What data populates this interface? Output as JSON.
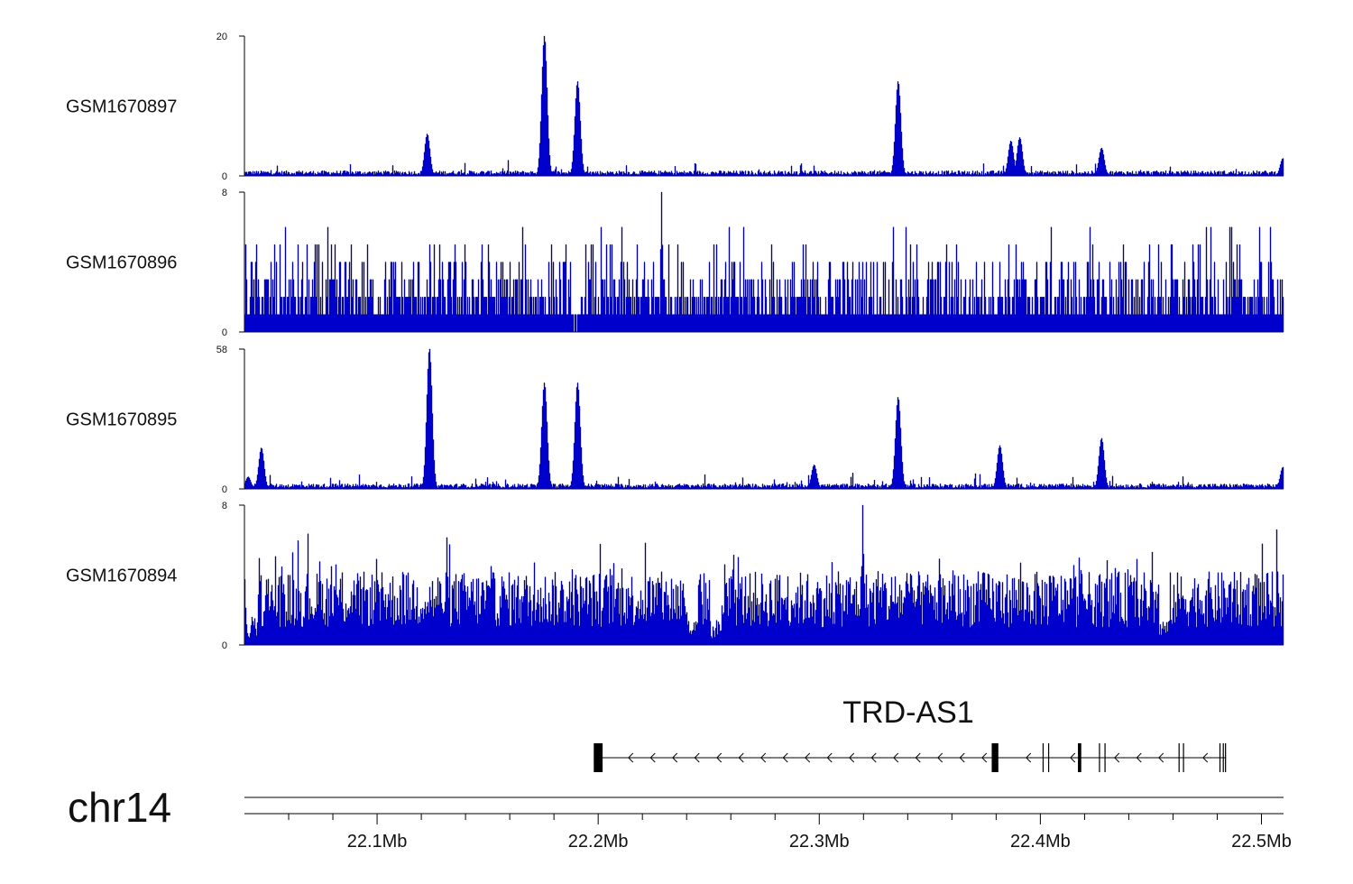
{
  "chart_data": {
    "type": "area",
    "chromosome": "chr14",
    "xlim": [
      22.04,
      22.51
    ],
    "x_unit": "Mb",
    "x_ticks": [
      {
        "value": 22.1,
        "label": "22.1Mb"
      },
      {
        "value": 22.2,
        "label": "22.2Mb"
      },
      {
        "value": 22.3,
        "label": "22.3Mb"
      },
      {
        "value": 22.4,
        "label": "22.4Mb"
      },
      {
        "value": 22.5,
        "label": "22.5Mb"
      }
    ],
    "x_minor_ticks": [
      22.06,
      22.08,
      22.12,
      22.14,
      22.16,
      22.18,
      22.22,
      22.24,
      22.26,
      22.28,
      22.32,
      22.34,
      22.36,
      22.38,
      22.42,
      22.44,
      22.46,
      22.48
    ],
    "color": "#0000cc",
    "tracks": [
      {
        "name": "GSM1670897",
        "ylim": [
          0,
          20
        ],
        "ymax_label": "20",
        "ymin_label": "0",
        "noise": "low",
        "baseline": 0.5,
        "peaks": [
          {
            "x": 22.1225,
            "y": 6
          },
          {
            "x": 22.1755,
            "y": 20
          },
          {
            "x": 22.1905,
            "y": 13.5
          },
          {
            "x": 22.3355,
            "y": 13.5
          },
          {
            "x": 22.3865,
            "y": 5
          },
          {
            "x": 22.3905,
            "y": 5.5
          },
          {
            "x": 22.4275,
            "y": 4
          },
          {
            "x": 22.5095,
            "y": 2.5
          }
        ]
      },
      {
        "name": "GSM1670896",
        "ylim": [
          0,
          8
        ],
        "ymax_label": "8",
        "ymin_label": "0",
        "noise": "discrete",
        "peaks": [
          {
            "x": 22.2285,
            "y": 8
          }
        ]
      },
      {
        "name": "GSM1670895",
        "ylim": [
          0,
          58
        ],
        "ymax_label": "58",
        "ymin_label": "0",
        "noise": "low",
        "baseline": 0.5,
        "peaks": [
          {
            "x": 22.0415,
            "y": 5
          },
          {
            "x": 22.0475,
            "y": 17
          },
          {
            "x": 22.1235,
            "y": 58
          },
          {
            "x": 22.1755,
            "y": 44
          },
          {
            "x": 22.1905,
            "y": 44
          },
          {
            "x": 22.2975,
            "y": 10
          },
          {
            "x": 22.3355,
            "y": 38
          },
          {
            "x": 22.3815,
            "y": 18
          },
          {
            "x": 22.4275,
            "y": 21
          },
          {
            "x": 22.5095,
            "y": 9
          }
        ]
      },
      {
        "name": "GSM1670894",
        "ylim": [
          0,
          8
        ],
        "ymax_label": "8",
        "ymin_label": "0",
        "noise": "high",
        "peaks": [
          {
            "x": 22.3195,
            "y": 8
          }
        ]
      }
    ],
    "gene": {
      "name": "TRD-AS1",
      "start": 22.198,
      "end": 22.484,
      "strand": "-",
      "exons": [
        {
          "start": 22.198,
          "end": 22.202
        },
        {
          "start": 22.378,
          "end": 22.381
        },
        {
          "start": 22.401,
          "end": 22.4015
        },
        {
          "start": 22.4035,
          "end": 22.404
        },
        {
          "start": 22.417,
          "end": 22.4185
        },
        {
          "start": 22.4265,
          "end": 22.427
        },
        {
          "start": 22.429,
          "end": 22.4295
        },
        {
          "start": 22.4625,
          "end": 22.463
        },
        {
          "start": 22.4645,
          "end": 22.465
        },
        {
          "start": 22.481,
          "end": 22.4815
        },
        {
          "start": 22.4825,
          "end": 22.483
        },
        {
          "start": 22.4835,
          "end": 22.484
        }
      ]
    }
  }
}
